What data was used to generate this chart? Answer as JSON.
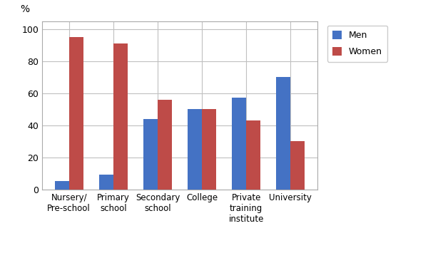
{
  "categories": [
    "Nursery/\nPre-school",
    "Primary\nschool",
    "Secondary\nschool",
    "College",
    "Private\ntraining\ninstitute",
    "University"
  ],
  "men_values": [
    5,
    9,
    44,
    50,
    57,
    70
  ],
  "women_values": [
    95,
    91,
    56,
    50,
    43,
    30
  ],
  "men_color": "#4472C4",
  "women_color": "#BE4B48",
  "ylabel": "%",
  "ylim": [
    0,
    105
  ],
  "yticks": [
    0,
    20,
    40,
    60,
    80,
    100
  ],
  "legend_labels": [
    "Men",
    "Women"
  ],
  "bar_width": 0.32,
  "background_color": "#ffffff",
  "grid_color": "#c0c0c0",
  "figsize": [
    5.93,
    3.69
  ],
  "dpi": 100
}
